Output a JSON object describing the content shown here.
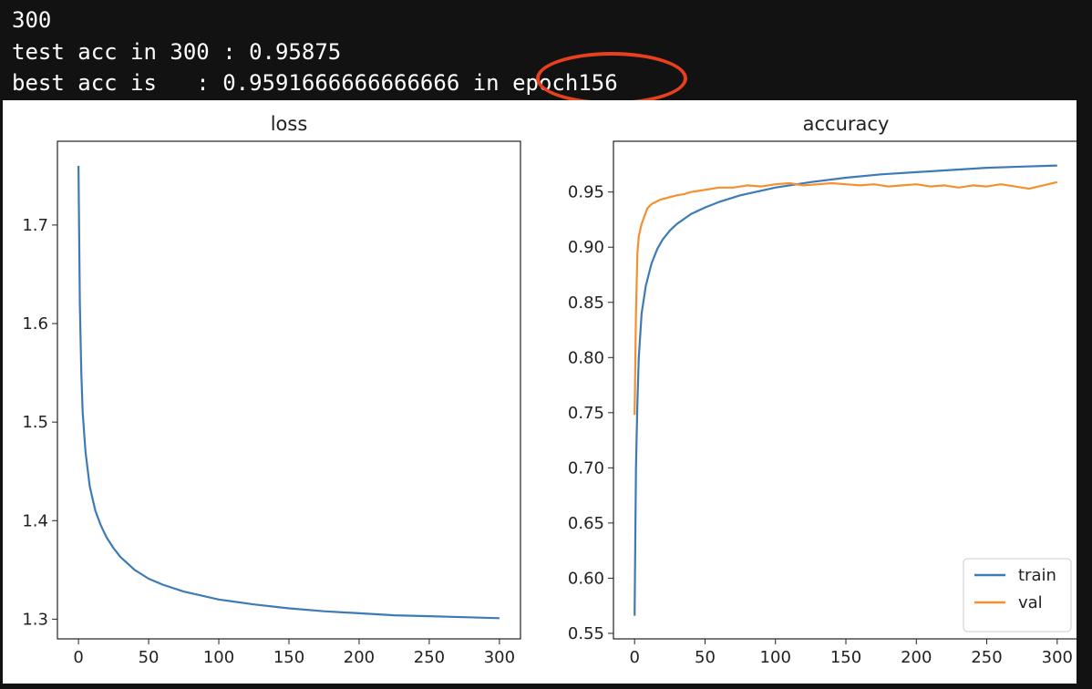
{
  "console": {
    "lines": [
      "300",
      "test acc in 300 : 0.95875",
      "best acc is   : 0.9591666666666666 in epoch156"
    ],
    "highlight_color": "#e8401c"
  },
  "chart_data": [
    {
      "type": "line",
      "title": "loss",
      "xlabel": "",
      "ylabel": "",
      "xlim": [
        -15,
        315
      ],
      "ylim": [
        1.28,
        1.785
      ],
      "xticks": [
        0,
        50,
        100,
        150,
        200,
        250,
        300
      ],
      "yticks": [
        1.3,
        1.4,
        1.5,
        1.6,
        1.7
      ],
      "ytick_labels": [
        "1.3",
        "1.4",
        "1.5",
        "1.6",
        "1.7"
      ],
      "grid": false,
      "series": [
        {
          "color": "#3d7bb7",
          "x": [
            0,
            1,
            2,
            3,
            5,
            8,
            12,
            16,
            20,
            25,
            30,
            40,
            50,
            60,
            75,
            100,
            125,
            150,
            175,
            200,
            225,
            250,
            275,
            300
          ],
          "y": [
            1.76,
            1.62,
            1.55,
            1.51,
            1.47,
            1.435,
            1.41,
            1.395,
            1.383,
            1.372,
            1.363,
            1.35,
            1.341,
            1.335,
            1.328,
            1.32,
            1.315,
            1.311,
            1.308,
            1.306,
            1.304,
            1.303,
            1.302,
            1.301
          ]
        }
      ]
    },
    {
      "type": "line",
      "title": "accuracy",
      "xlabel": "",
      "ylabel": "",
      "xlim": [
        -15,
        315
      ],
      "ylim": [
        0.545,
        0.996
      ],
      "xticks": [
        0,
        50,
        100,
        150,
        200,
        250,
        300
      ],
      "yticks": [
        0.55,
        0.6,
        0.65,
        0.7,
        0.75,
        0.8,
        0.85,
        0.9,
        0.95
      ],
      "ytick_labels": [
        "0.55",
        "0.60",
        "0.65",
        "0.70",
        "0.75",
        "0.80",
        "0.85",
        "0.90",
        "0.95"
      ],
      "grid": false,
      "legend": "lower-right",
      "series": [
        {
          "name": "train",
          "color": "#3d7bb7",
          "x": [
            0,
            1,
            2,
            3,
            5,
            8,
            12,
            16,
            20,
            25,
            30,
            40,
            50,
            60,
            75,
            100,
            125,
            150,
            175,
            200,
            225,
            250,
            275,
            300
          ],
          "y": [
            0.566,
            0.7,
            0.76,
            0.8,
            0.84,
            0.865,
            0.885,
            0.898,
            0.907,
            0.915,
            0.921,
            0.93,
            0.936,
            0.941,
            0.947,
            0.954,
            0.959,
            0.963,
            0.966,
            0.968,
            0.97,
            0.972,
            0.973,
            0.974
          ]
        },
        {
          "name": "val",
          "color": "#f5902f",
          "x": [
            0,
            1,
            2,
            3,
            5,
            7,
            9,
            12,
            15,
            18,
            21,
            24,
            27,
            30,
            35,
            40,
            45,
            50,
            55,
            60,
            70,
            80,
            90,
            100,
            110,
            120,
            130,
            140,
            150,
            160,
            170,
            180,
            190,
            200,
            210,
            220,
            230,
            240,
            250,
            260,
            270,
            280,
            290,
            300
          ],
          "y": [
            0.748,
            0.84,
            0.895,
            0.91,
            0.921,
            0.928,
            0.935,
            0.939,
            0.941,
            0.943,
            0.944,
            0.945,
            0.946,
            0.947,
            0.948,
            0.95,
            0.951,
            0.952,
            0.953,
            0.954,
            0.954,
            0.956,
            0.955,
            0.957,
            0.958,
            0.956,
            0.957,
            0.958,
            0.957,
            0.956,
            0.957,
            0.955,
            0.956,
            0.957,
            0.955,
            0.956,
            0.954,
            0.956,
            0.955,
            0.957,
            0.955,
            0.953,
            0.956,
            0.959
          ]
        }
      ]
    }
  ]
}
